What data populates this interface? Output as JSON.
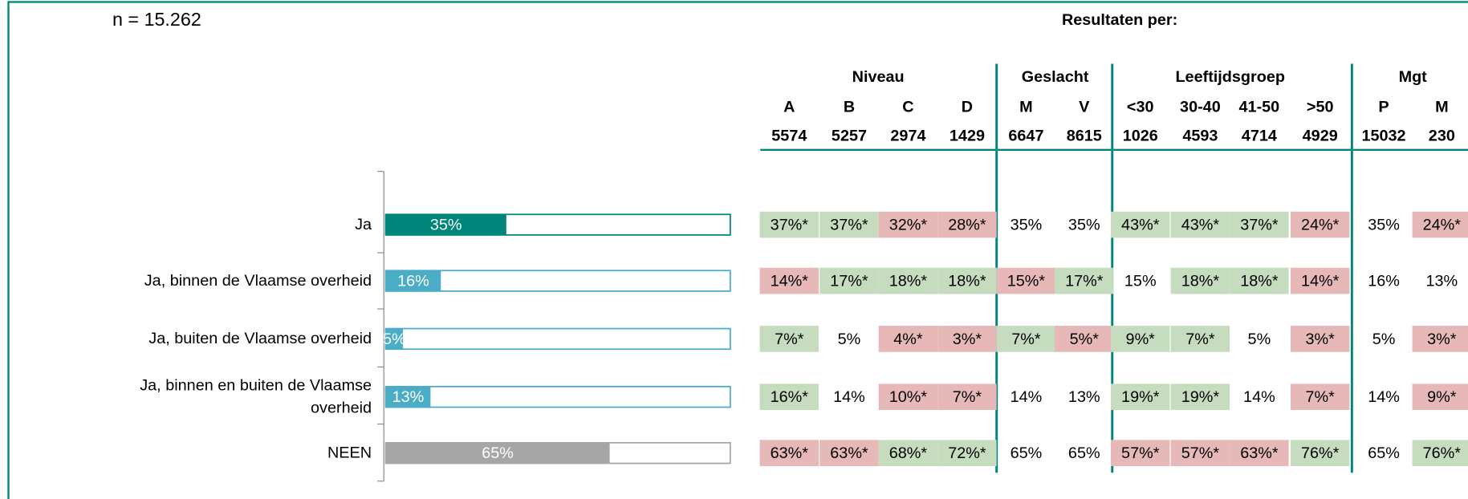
{
  "n_label": "n =  15.262",
  "results_label": "Resultaten per:",
  "chart_data": {
    "type": "bar",
    "orientation": "horizontal",
    "categories": [
      "Ja",
      "Ja, binnen de Vlaamse overheid",
      "Ja, buiten de Vlaamse overheid",
      "Ja, binnen en buiten de Vlaamse overheid",
      "NEEN"
    ],
    "values": [
      35,
      16,
      5,
      13,
      65
    ],
    "value_labels": [
      "35%",
      "16%",
      "5%",
      "13%",
      "65%"
    ],
    "colors": [
      "#00857b",
      "#4bacc6",
      "#4bacc6",
      "#4bacc6",
      "#a6a6a6"
    ],
    "xlim": [
      0,
      100
    ]
  },
  "table": {
    "groups": [
      {
        "name": "Niveau",
        "columns": [
          {
            "label": "A",
            "n": 5574
          },
          {
            "label": "B",
            "n": 5257
          },
          {
            "label": "C",
            "n": 2974
          },
          {
            "label": "D",
            "n": 1429
          }
        ]
      },
      {
        "name": "Geslacht",
        "columns": [
          {
            "label": "M",
            "n": 6647
          },
          {
            "label": "V",
            "n": 8615
          }
        ]
      },
      {
        "name": "Leeftijdsgroep",
        "columns": [
          {
            "label": "<30",
            "n": 1026
          },
          {
            "label": "30-40",
            "n": 4593
          },
          {
            "label": "41-50",
            "n": 4714
          },
          {
            "label": ">50",
            "n": 4929
          }
        ]
      },
      {
        "name": "Mgt",
        "columns": [
          {
            "label": "P",
            "n": 15032
          },
          {
            "label": "M",
            "n": 230
          }
        ]
      }
    ],
    "rows": [
      [
        {
          "text": "37%*",
          "color": "#c6dcbe"
        },
        {
          "text": "37%*",
          "color": "#c6dcbe"
        },
        {
          "text": "32%*",
          "color": "#e6b9b8"
        },
        {
          "text": "28%*",
          "color": "#e6b9b8"
        },
        {
          "text": "35%",
          "color": null
        },
        {
          "text": "35%",
          "color": null
        },
        {
          "text": "43%*",
          "color": "#c6dcbe"
        },
        {
          "text": "43%*",
          "color": "#c6dcbe"
        },
        {
          "text": "37%*",
          "color": "#c6dcbe"
        },
        {
          "text": "24%*",
          "color": "#e6b9b8"
        },
        {
          "text": "35%",
          "color": null
        },
        {
          "text": "24%*",
          "color": "#e6b9b8"
        }
      ],
      [
        {
          "text": "14%*",
          "color": "#e6b9b8"
        },
        {
          "text": "17%*",
          "color": "#c6dcbe"
        },
        {
          "text": "18%*",
          "color": "#c6dcbe"
        },
        {
          "text": "18%*",
          "color": "#c6dcbe"
        },
        {
          "text": "15%*",
          "color": "#e6b9b8"
        },
        {
          "text": "17%*",
          "color": "#c6dcbe"
        },
        {
          "text": "15%",
          "color": null
        },
        {
          "text": "18%*",
          "color": "#c6dcbe"
        },
        {
          "text": "18%*",
          "color": "#c6dcbe"
        },
        {
          "text": "14%*",
          "color": "#e6b9b8"
        },
        {
          "text": "16%",
          "color": null
        },
        {
          "text": "13%",
          "color": null
        }
      ],
      [
        {
          "text": "7%*",
          "color": "#c6dcbe"
        },
        {
          "text": "5%",
          "color": null
        },
        {
          "text": "4%*",
          "color": "#e6b9b8"
        },
        {
          "text": "3%*",
          "color": "#e6b9b8"
        },
        {
          "text": "7%*",
          "color": "#c6dcbe"
        },
        {
          "text": "5%*",
          "color": "#e6b9b8"
        },
        {
          "text": "9%*",
          "color": "#c6dcbe"
        },
        {
          "text": "7%*",
          "color": "#c6dcbe"
        },
        {
          "text": "5%",
          "color": null
        },
        {
          "text": "3%*",
          "color": "#e6b9b8"
        },
        {
          "text": "5%",
          "color": null
        },
        {
          "text": "3%*",
          "color": "#e6b9b8"
        }
      ],
      [
        {
          "text": "16%*",
          "color": "#c6dcbe"
        },
        {
          "text": "14%",
          "color": null
        },
        {
          "text": "10%*",
          "color": "#e6b9b8"
        },
        {
          "text": "7%*",
          "color": "#e6b9b8"
        },
        {
          "text": "14%",
          "color": null
        },
        {
          "text": "13%",
          "color": null
        },
        {
          "text": "19%*",
          "color": "#c6dcbe"
        },
        {
          "text": "19%*",
          "color": "#c6dcbe"
        },
        {
          "text": "14%",
          "color": null
        },
        {
          "text": "7%*",
          "color": "#e6b9b8"
        },
        {
          "text": "14%",
          "color": null
        },
        {
          "text": "9%*",
          "color": "#e6b9b8"
        }
      ],
      [
        {
          "text": "63%*",
          "color": "#e6b9b8"
        },
        {
          "text": "63%*",
          "color": "#e6b9b8"
        },
        {
          "text": "68%*",
          "color": "#c6dcbe"
        },
        {
          "text": "72%*",
          "color": "#c6dcbe"
        },
        {
          "text": "65%",
          "color": null
        },
        {
          "text": "65%",
          "color": null
        },
        {
          "text": "57%*",
          "color": "#e6b9b8"
        },
        {
          "text": "57%*",
          "color": "#e6b9b8"
        },
        {
          "text": "63%*",
          "color": "#e6b9b8"
        },
        {
          "text": "76%*",
          "color": "#c6dcbe"
        },
        {
          "text": "65%",
          "color": null
        },
        {
          "text": "76%*",
          "color": "#c6dcbe"
        }
      ]
    ]
  }
}
